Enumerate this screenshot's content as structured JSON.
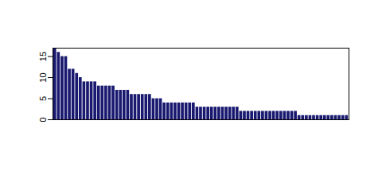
{
  "chart_data": {
    "type": "bar",
    "categories": [
      null,
      null,
      null,
      null,
      null,
      null,
      null,
      null,
      null,
      null,
      null,
      null,
      null,
      null,
      null,
      null,
      null,
      null,
      null,
      null,
      null,
      null,
      null,
      null,
      null,
      null,
      null,
      null,
      null,
      null,
      null,
      null,
      null,
      null,
      null,
      null,
      null,
      null,
      null,
      null,
      null,
      null,
      null,
      null,
      null,
      null,
      null,
      null,
      null,
      null,
      null,
      null,
      null,
      null,
      null,
      null,
      null,
      null,
      null,
      null,
      null,
      null,
      null,
      null,
      null,
      null,
      null,
      null,
      null,
      null,
      null,
      null,
      null,
      null,
      null,
      null,
      null,
      null,
      null,
      null,
      null
    ],
    "values": [
      17,
      16,
      15,
      15,
      12,
      12,
      11,
      10,
      9,
      9,
      9,
      9,
      8,
      8,
      8,
      8,
      8,
      7,
      7,
      7,
      7,
      6,
      6,
      6,
      6,
      6,
      6,
      5,
      5,
      5,
      4,
      4,
      4,
      4,
      4,
      4,
      4,
      4,
      4,
      3,
      3,
      3,
      3,
      3,
      3,
      3,
      3,
      3,
      3,
      3,
      3,
      2,
      2,
      2,
      2,
      2,
      2,
      2,
      2,
      2,
      2,
      2,
      2,
      2,
      2,
      2,
      2,
      1,
      1,
      1,
      1,
      1,
      1,
      1,
      1,
      1,
      1,
      1,
      1,
      1,
      1
    ],
    "color": "#191970",
    "ylim": [
      0,
      17
    ],
    "yticks": [
      0,
      5,
      10,
      15
    ],
    "tick_labels": "y"
  }
}
